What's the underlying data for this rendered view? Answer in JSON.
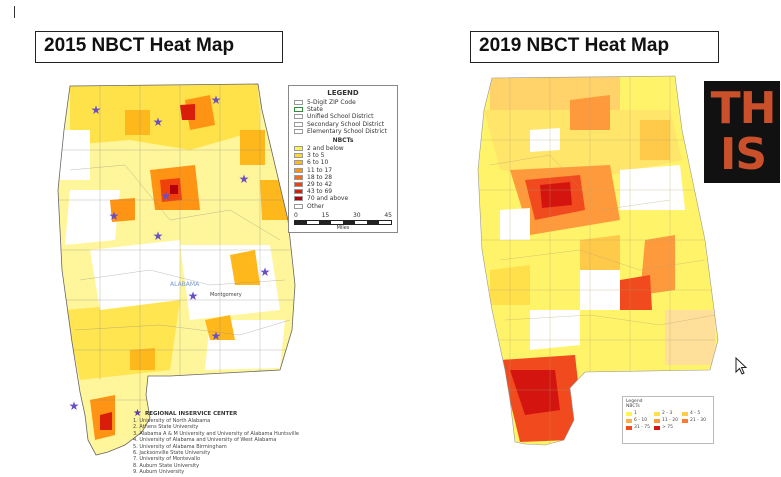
{
  "left_title": "2015 NBCT Heat Map",
  "right_title": "2019 NBCT Heat Map",
  "map_labels": {
    "state_name": "ALABAMA",
    "montgomery": "Montgomery"
  },
  "legend_2015": {
    "title": "LEGEND",
    "boundaries": [
      "5-Digit ZIP Code",
      "State",
      "Unified School District",
      "Secondary School District",
      "Elementary School District"
    ],
    "subtitle": "NBCTs",
    "classes": [
      {
        "label": "2 and below",
        "color": "#fff44f"
      },
      {
        "label": "3 to 5",
        "color": "#ffd928"
      },
      {
        "label": "6 to 10",
        "color": "#ffb81c"
      },
      {
        "label": "11 to 17",
        "color": "#ff9314"
      },
      {
        "label": "18 to 28",
        "color": "#ff6a0e"
      },
      {
        "label": "29 to 42",
        "color": "#f0410c"
      },
      {
        "label": "43 to 69",
        "color": "#d91d0b"
      },
      {
        "label": "70 and above",
        "color": "#b3000b"
      },
      {
        "label": "Other",
        "color": "#ffffff"
      }
    ],
    "scale_ticks": [
      "0",
      "15",
      "30",
      "45"
    ],
    "scale_unit": "Miles"
  },
  "rsc": {
    "heading": "REGIONAL INSERVICE CENTER",
    "items": [
      "1. University of North Alabama",
      "2. Athens State University",
      "3. Alabama A & M University and University of Alabama Huntsville",
      "4. University of Alabama and University of West Alabama",
      "5. University of Alabama Birmingham",
      "6. Jacksonville State University",
      "7. University of Montevallo",
      "8. Auburn State University",
      "9. Auburn University"
    ]
  },
  "legend_2019": {
    "title": "Legend",
    "subtitle": "NBCTs",
    "classes": [
      {
        "label": "1",
        "color": "#fff44f"
      },
      {
        "label": "2 - 3",
        "color": "#ffe04a"
      },
      {
        "label": "4 - 5",
        "color": "#ffc94a"
      },
      {
        "label": "6 - 10",
        "color": "#ffb347"
      },
      {
        "label": "11 - 20",
        "color": "#ff9a3c"
      },
      {
        "label": "21 - 30",
        "color": "#ff7a2e"
      },
      {
        "label": "31 - 75",
        "color": "#f04a1e"
      },
      {
        "label": "> 75",
        "color": "#d4140f"
      }
    ]
  },
  "logo": {
    "line1": "TH",
    "line2": "IS"
  },
  "colors": {
    "yellow": "#fff44f",
    "orange": "#ff9314",
    "red": "#d91d0b",
    "star": "#6b4fc3"
  }
}
